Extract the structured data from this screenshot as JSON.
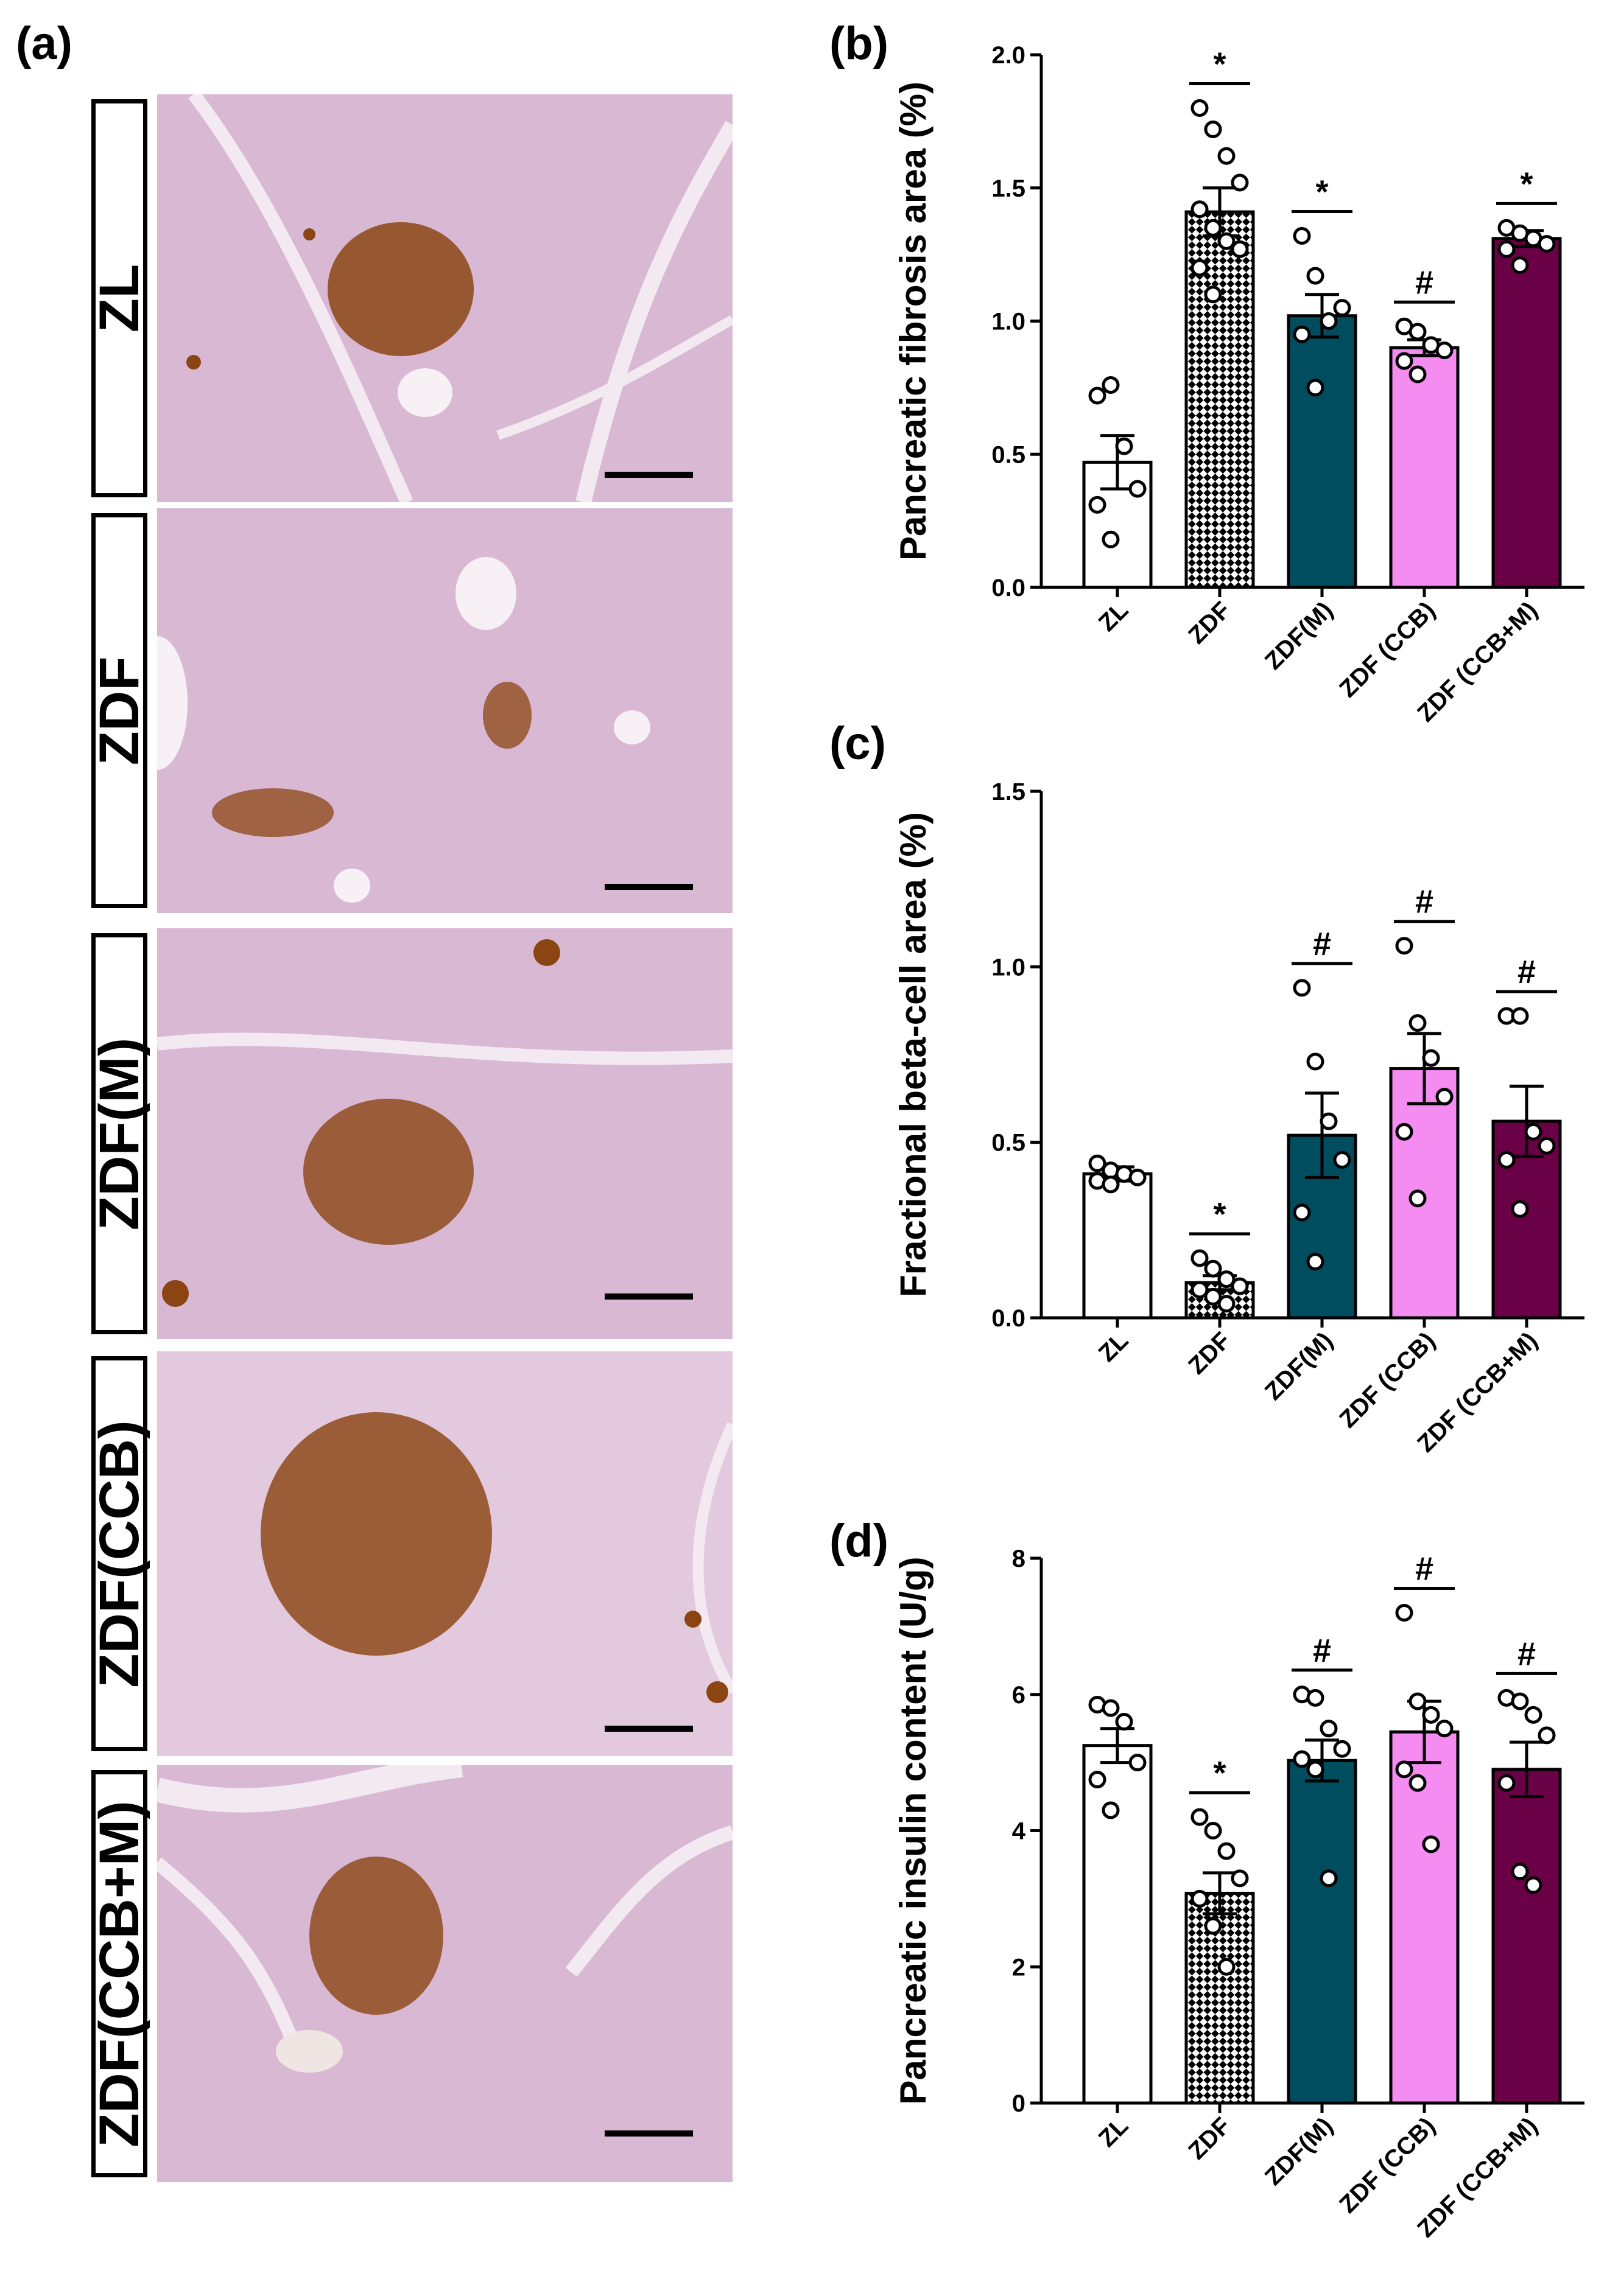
{
  "panel_labels": {
    "a": "(a)",
    "b": "(b)",
    "c": "(c)",
    "d": "(d)"
  },
  "micrographs": [
    {
      "label": "ZL"
    },
    {
      "label": "ZDF"
    },
    {
      "label": "ZDF(M)"
    },
    {
      "label": "ZDF(CCB)"
    },
    {
      "label": "ZDF(CCB+M)"
    }
  ],
  "colors": {
    "ZL": "#ffffff",
    "ZDF": "#000000",
    "ZDF(M)": "#004d5f",
    "ZDF (CCB)": "#f58cf2",
    "ZDF (CCB+M)": "#6a0046",
    "tissue": "#d9b8d4",
    "islet": "#8b4513"
  },
  "chart_data": [
    {
      "type": "bar",
      "panel": "(b)",
      "ylabel": "Pancreatic fibrosis area (%)",
      "categories": [
        "ZL",
        "ZDF",
        "ZDF(M)",
        "ZDF (CCB)",
        "ZDF (CCB+M)"
      ],
      "values": [
        0.47,
        1.41,
        1.02,
        0.9,
        1.31
      ],
      "sem": [
        0.1,
        0.09,
        0.08,
        0.03,
        0.03
      ],
      "points": [
        [
          0.72,
          0.76,
          0.53,
          0.37,
          0.31,
          0.18
        ],
        [
          1.8,
          1.72,
          1.62,
          1.52,
          1.42,
          1.35,
          1.3,
          1.27,
          1.2,
          1.1
        ],
        [
          1.32,
          1.17,
          1.0,
          1.05,
          0.95,
          0.75
        ],
        [
          0.98,
          0.96,
          0.91,
          0.89,
          0.85,
          0.8
        ],
        [
          1.35,
          1.33,
          1.31,
          1.29,
          1.27,
          1.21
        ]
      ],
      "annotations": [
        "",
        "*",
        "*",
        "#",
        "*"
      ],
      "ylim": [
        0,
        2.0
      ],
      "yticks": [
        "0.0",
        "0.5",
        "1.0",
        "1.5",
        "2.0"
      ]
    },
    {
      "type": "bar",
      "panel": "(c)",
      "ylabel": "Fractional beta-cell area (%)",
      "categories": [
        "ZL",
        "ZDF",
        "ZDF(M)",
        "ZDF (CCB)",
        "ZDF (CCB+M)"
      ],
      "values": [
        0.41,
        0.1,
        0.52,
        0.71,
        0.56
      ],
      "sem": [
        0.02,
        0.02,
        0.12,
        0.1,
        0.1
      ],
      "points": [
        [
          0.44,
          0.42,
          0.41,
          0.4,
          0.39,
          0.38
        ],
        [
          0.17,
          0.14,
          0.11,
          0.09,
          0.08,
          0.06,
          0.04
        ],
        [
          0.94,
          0.73,
          0.56,
          0.45,
          0.3,
          0.16
        ],
        [
          1.06,
          0.84,
          0.74,
          0.63,
          0.53,
          0.34
        ],
        [
          0.86,
          0.86,
          0.53,
          0.49,
          0.45,
          0.31
        ]
      ],
      "annotations": [
        "",
        "*",
        "#",
        "#",
        "#"
      ],
      "ylim": [
        0,
        1.5
      ],
      "yticks": [
        "0.0",
        "0.5",
        "1.0",
        "1.5"
      ]
    },
    {
      "type": "bar",
      "panel": "(d)",
      "ylabel": "Pancreatic insulin content (U/g)",
      "categories": [
        "ZL",
        "ZDF",
        "ZDF(M)",
        "ZDF (CCB)",
        "ZDF (CCB+M)"
      ],
      "values": [
        5.25,
        3.08,
        5.03,
        5.45,
        4.9
      ],
      "sem": [
        0.25,
        0.3,
        0.3,
        0.45,
        0.4
      ],
      "points": [
        [
          5.85,
          5.8,
          5.6,
          5.0,
          4.75,
          4.3
        ],
        [
          4.2,
          4.0,
          3.7,
          3.3,
          3.0,
          2.6,
          2.0
        ],
        [
          6.0,
          5.95,
          5.5,
          5.2,
          5.05,
          4.9,
          3.3
        ],
        [
          7.2,
          5.9,
          5.7,
          5.5,
          4.9,
          4.7,
          3.8
        ],
        [
          5.95,
          5.9,
          5.7,
          5.4,
          4.7,
          3.4,
          3.2
        ]
      ],
      "annotations": [
        "",
        "*",
        "#",
        "#",
        "#"
      ],
      "ylim": [
        0,
        8
      ],
      "yticks": [
        "0",
        "2",
        "4",
        "6",
        "8"
      ]
    }
  ]
}
